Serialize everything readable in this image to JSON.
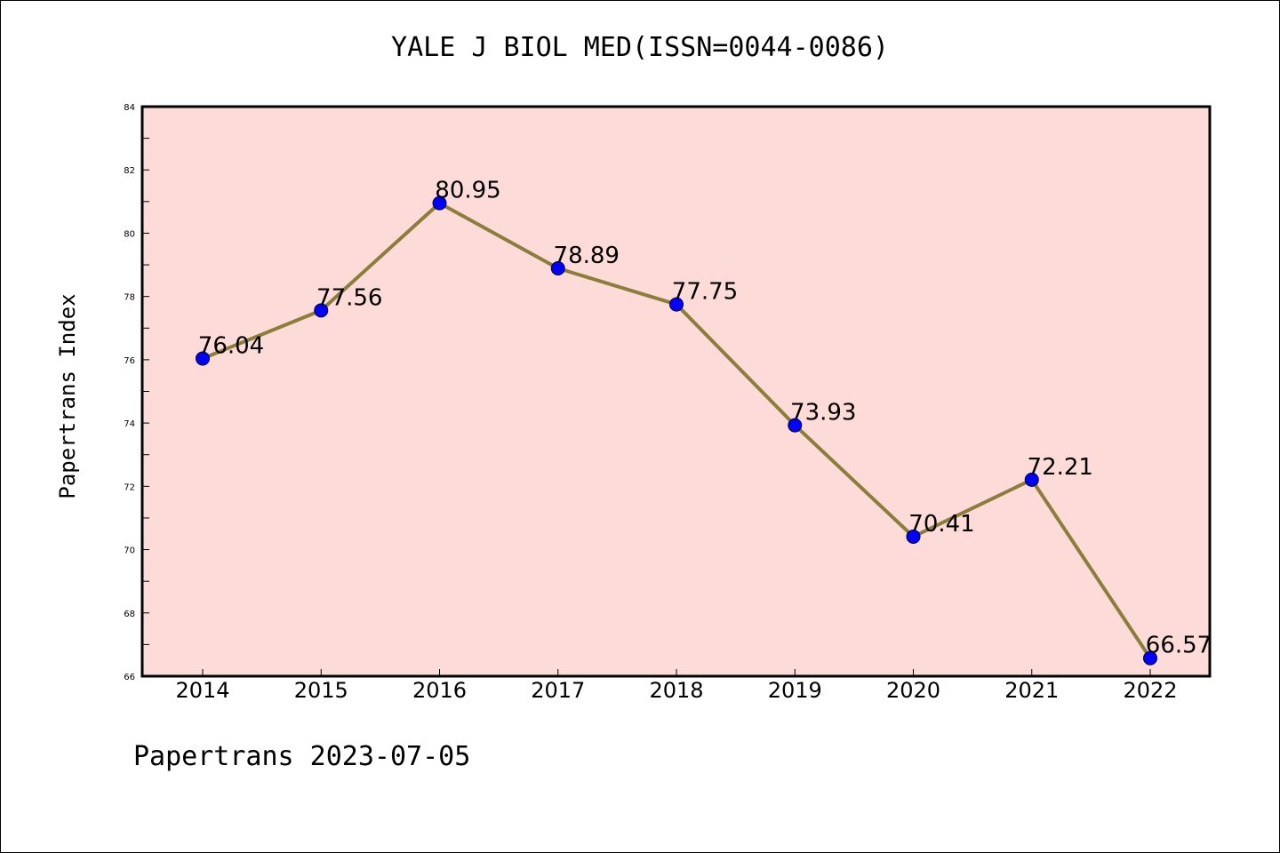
{
  "chart_data": {
    "type": "line",
    "title": "YALE J BIOL MED(ISSN=0044-0086)",
    "xlabel": "",
    "ylabel": "Papertrans Index",
    "categories": [
      "2014",
      "2015",
      "2016",
      "2017",
      "2018",
      "2019",
      "2020",
      "2021",
      "2022"
    ],
    "series": [
      {
        "values": [
          76.04,
          77.56,
          80.95,
          78.89,
          77.75,
          73.93,
          70.41,
          72.21,
          66.57
        ],
        "labels": [
          "76.04",
          "77.56",
          "80.95",
          "78.89",
          "77.75",
          "73.93",
          "70.41",
          "72.21",
          "66.57"
        ]
      }
    ],
    "ylim": [
      66,
      84
    ],
    "yticks": [
      66,
      68,
      70,
      72,
      74,
      76,
      78,
      80,
      82,
      84
    ],
    "grid": false,
    "legend": "none",
    "colors": {
      "plot_background": "#fddbd8",
      "line": "#8b7d3a",
      "marker": "#0000ff",
      "axis": "#000000"
    }
  },
  "footer": "Papertrans 2023-07-05"
}
